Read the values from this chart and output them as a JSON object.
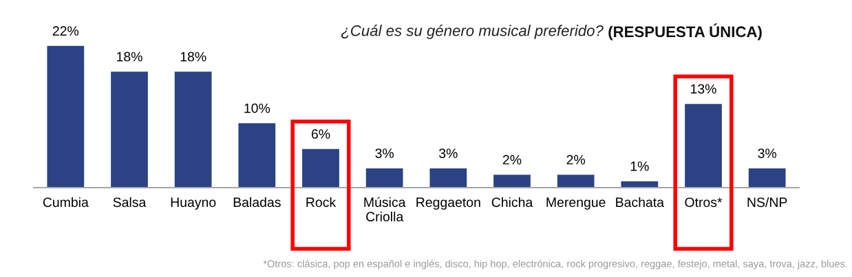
{
  "chart_data": {
    "type": "bar",
    "title": "¿Cuál es su género musical preferido?",
    "subtitle": "(RESPUESTA ÚNICA)",
    "categories": [
      "Cumbia",
      "Salsa",
      "Huayno",
      "Baladas",
      "Rock",
      "Música\nCriolla",
      "Reggaeton",
      "Chicha",
      "Merengue",
      "Bachata",
      "Otros*",
      "NS/NP"
    ],
    "values": [
      22,
      18,
      18,
      10,
      6,
      3,
      3,
      2,
      2,
      1,
      13,
      3
    ],
    "value_labels": [
      "22%",
      "18%",
      "18%",
      "10%",
      "6%",
      "3%",
      "3%",
      "2%",
      "2%",
      "1%",
      "13%",
      "3%"
    ],
    "color": "#2b4384",
    "grid": false,
    "legend": false,
    "annotations": [
      "*Otros: clásica, pop en español e inglés, disco, hip hop, electrónica, rock progresivo, reggae, festejo, metal, saya, trova, jazz, blues."
    ]
  }
}
